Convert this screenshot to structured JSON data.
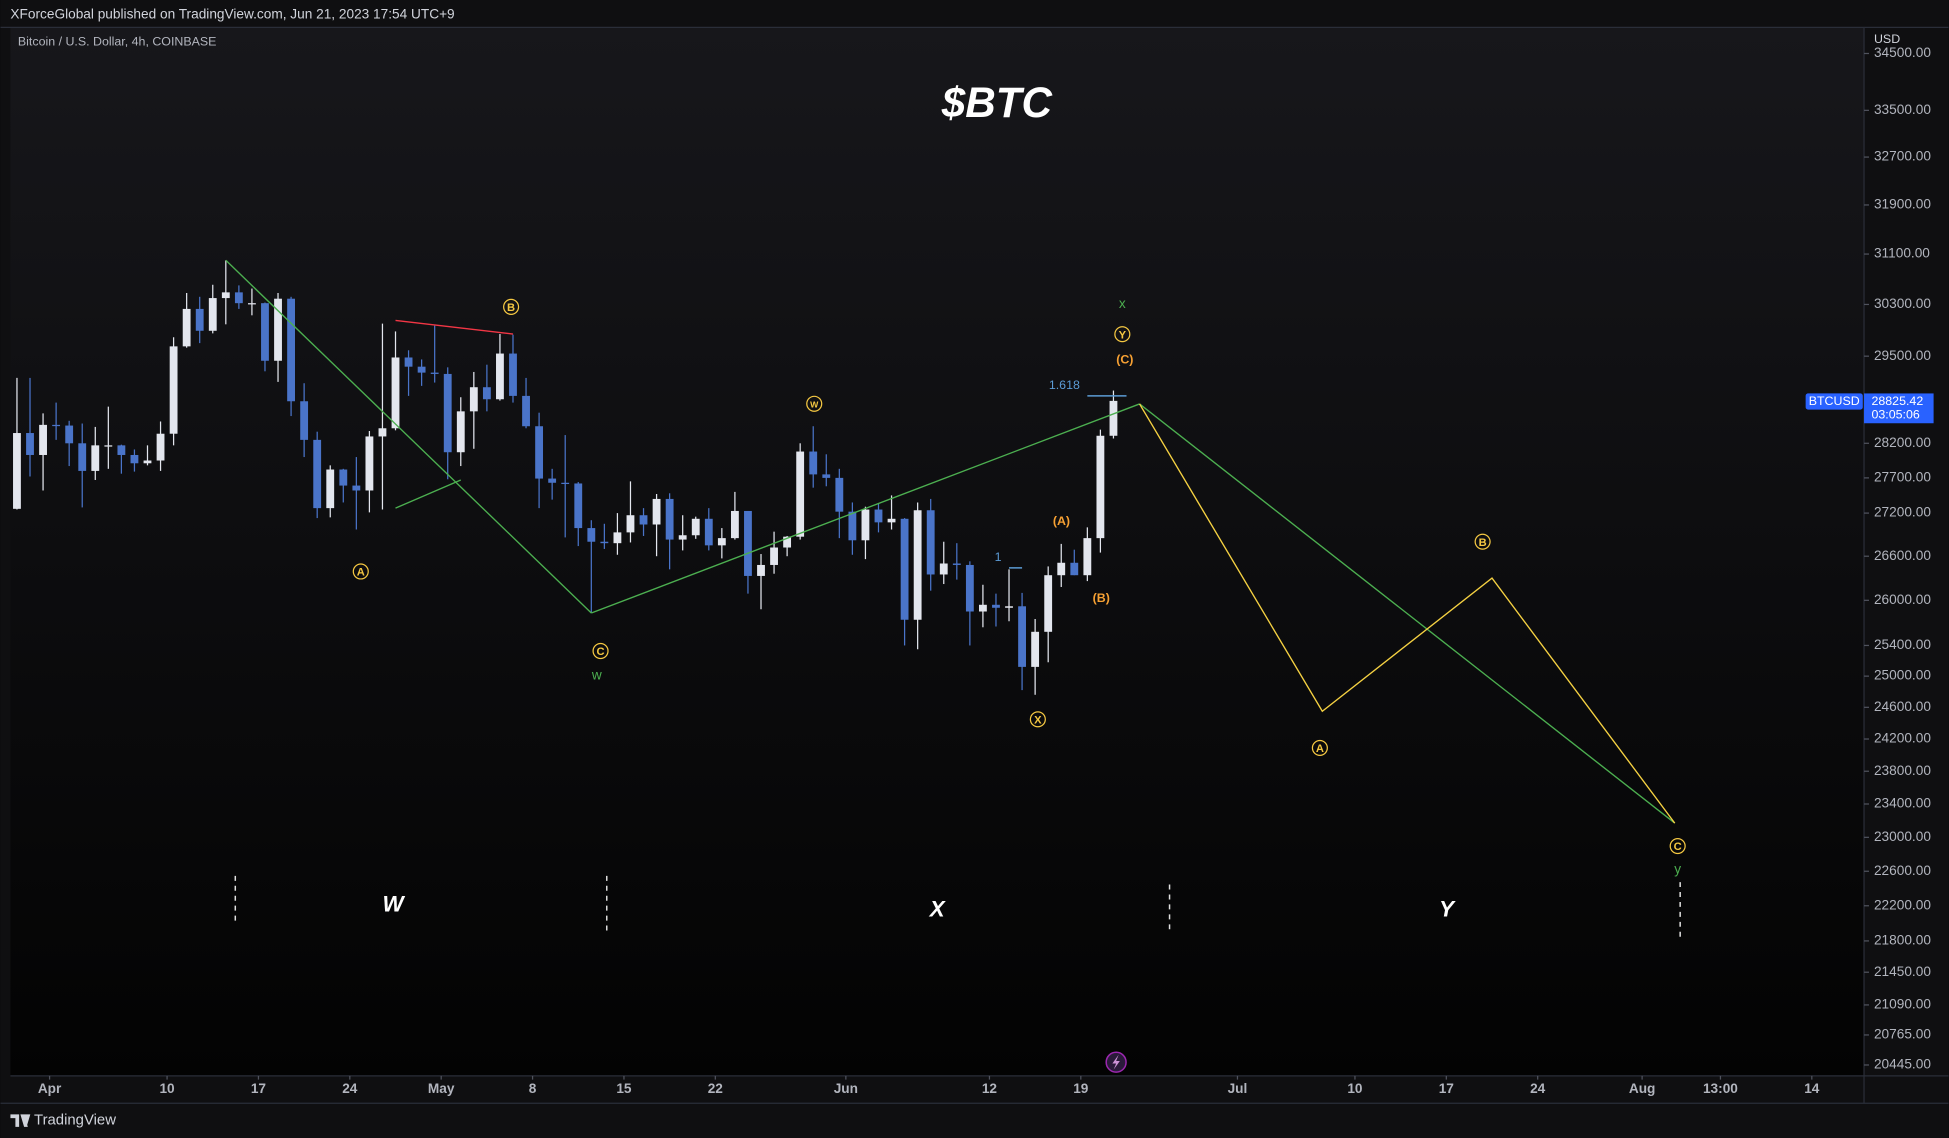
{
  "header": {
    "published": "XForceGlobal published on TradingView.com, Jun 21, 2023 17:54 UTC+9"
  },
  "footer": {
    "brand": "TradingView"
  },
  "chart_data": {
    "type": "candlestick",
    "title": "$BTC",
    "symbol": "Bitcoin / U.S. Dollar, 4h, COINBASE",
    "currency": "USD",
    "ticker": "BTCUSD",
    "last_price": 28825.42,
    "countdown": "03:05:06",
    "log_scale": true,
    "grid": false,
    "up_color": "#e3e6ee",
    "down_color": "#4a74c9",
    "x": [
      "03-29",
      "03-30",
      "03-31",
      "04-01",
      "04-02",
      "04-03",
      "04-04",
      "04-05",
      "04-06",
      "04-07",
      "04-08",
      "04-09",
      "04-10",
      "04-11",
      "04-12",
      "04-13",
      "04-14",
      "04-15",
      "04-16",
      "04-17",
      "04-18",
      "04-19",
      "04-20",
      "04-21",
      "04-22",
      "04-23",
      "04-24",
      "04-25",
      "04-26",
      "04-27",
      "04-28",
      "04-29",
      "04-30",
      "05-01",
      "05-02",
      "05-03",
      "05-04",
      "05-05",
      "05-06",
      "05-07",
      "05-08",
      "05-09",
      "05-10",
      "05-11",
      "05-12",
      "05-13",
      "05-14",
      "05-15",
      "05-16",
      "05-17",
      "05-18",
      "05-19",
      "05-20",
      "05-21",
      "05-22",
      "05-23",
      "05-24",
      "05-25",
      "05-26",
      "05-27",
      "05-28",
      "05-29",
      "05-30",
      "05-31",
      "06-01",
      "06-02",
      "06-03",
      "06-04",
      "06-05",
      "06-06",
      "06-07",
      "06-08",
      "06-09",
      "06-10",
      "06-11",
      "06-12",
      "06-13",
      "06-14",
      "06-15",
      "06-16",
      "06-17",
      "06-18",
      "06-19",
      "06-20",
      "06-21"
    ],
    "open": [
      27260,
      28350,
      28030,
      28470,
      28460,
      28200,
      27800,
      28170,
      28170,
      28030,
      27910,
      27950,
      28340,
      29650,
      30230,
      29890,
      30400,
      30490,
      30320,
      30320,
      29430,
      30390,
      28820,
      28250,
      27270,
      27820,
      27590,
      27520,
      28300,
      28420,
      29480,
      29340,
      29250,
      29230,
      28070,
      28670,
      29030,
      28850,
      29540,
      28900,
      28450,
      27690,
      27630,
      27620,
      26990,
      26800,
      26780,
      26930,
      27170,
      27040,
      27400,
      26830,
      26890,
      27120,
      26750,
      26850,
      27230,
      26330,
      26480,
      26720,
      26870,
      28080,
      27750,
      27700,
      27220,
      26820,
      27250,
      27070,
      27120,
      25740,
      27240,
      26350,
      26500,
      26480,
      25850,
      25940,
      25900,
      25920,
      25120,
      25580,
      26340,
      26510,
      26340,
      26850,
      28310
    ],
    "high": [
      29170,
      29170,
      28640,
      28800,
      28530,
      28490,
      28440,
      28740,
      28180,
      28110,
      28170,
      28520,
      29790,
      30480,
      30420,
      30610,
      31000,
      30600,
      30550,
      30330,
      30480,
      30420,
      29090,
      28370,
      27880,
      27830,
      28000,
      28380,
      30000,
      29880,
      29590,
      29450,
      29970,
      29330,
      28880,
      29260,
      29370,
      29840,
      29830,
      29170,
      28650,
      27830,
      28320,
      27640,
      27100,
      27050,
      27200,
      27650,
      27270,
      27470,
      27480,
      27170,
      27150,
      27270,
      26990,
      27500,
      27230,
      26630,
      26940,
      26880,
      28200,
      28450,
      28040,
      27830,
      27350,
      27290,
      27330,
      27450,
      27130,
      27350,
      27400,
      26800,
      26780,
      26530,
      26210,
      26090,
      26420,
      26100,
      25750,
      26460,
      26770,
      26690,
      27000,
      28400,
      28980
    ],
    "low": [
      27250,
      27720,
      27520,
      28250,
      27870,
      27280,
      27670,
      27830,
      27760,
      27790,
      27880,
      27800,
      28170,
      29630,
      29700,
      29850,
      29990,
      30230,
      30130,
      29270,
      29110,
      28600,
      28000,
      27130,
      27140,
      27350,
      26970,
      27210,
      27250,
      28390,
      28900,
      29050,
      29100,
      27680,
      27870,
      28120,
      28670,
      28830,
      28800,
      28420,
      27270,
      27390,
      26860,
      26740,
      25830,
      26700,
      26620,
      26790,
      26880,
      26600,
      26420,
      26680,
      26840,
      26680,
      26570,
      26830,
      26090,
      25880,
      26360,
      26600,
      26830,
      27560,
      27580,
      26850,
      26620,
      26560,
      26930,
      26970,
      25400,
      25350,
      26130,
      26220,
      26280,
      25400,
      25640,
      25650,
      25720,
      24820,
      24760,
      25180,
      26180,
      26340,
      26260,
      26650,
      28270
    ],
    "close": [
      28350,
      28030,
      28470,
      28460,
      28200,
      27800,
      28170,
      28170,
      28030,
      27910,
      27950,
      28340,
      29650,
      30230,
      29890,
      30400,
      30490,
      30320,
      30320,
      29430,
      30390,
      28820,
      28250,
      27270,
      27820,
      27590,
      27520,
      28300,
      28420,
      29480,
      29340,
      29250,
      29230,
      28070,
      28670,
      29030,
      28850,
      29540,
      28900,
      28450,
      27690,
      27630,
      27620,
      26990,
      26800,
      26780,
      26930,
      27170,
      27040,
      27400,
      26830,
      26890,
      27120,
      26750,
      26850,
      27230,
      26330,
      26480,
      26720,
      26870,
      28080,
      27750,
      27700,
      27220,
      26820,
      27250,
      27070,
      27120,
      25740,
      27240,
      26350,
      26500,
      26480,
      25850,
      25940,
      25900,
      25920,
      25120,
      25580,
      26340,
      26510,
      26340,
      26850,
      28310,
      28825.42
    ],
    "xlim": [
      "03-29",
      "08-18"
    ],
    "xticks": [
      {
        "value": "04-01",
        "label": "Apr"
      },
      {
        "value": "04-10",
        "label": "10"
      },
      {
        "value": "04-17",
        "label": "17"
      },
      {
        "value": "04-24",
        "label": "24"
      },
      {
        "value": "05-01",
        "label": "May"
      },
      {
        "value": "05-08",
        "label": "8"
      },
      {
        "value": "05-15",
        "label": "15"
      },
      {
        "value": "05-22",
        "label": "22"
      },
      {
        "value": "06-01",
        "label": "Jun"
      },
      {
        "value": "06-12",
        "label": "12"
      },
      {
        "value": "06-19",
        "label": "19"
      },
      {
        "value": "07-01",
        "label": "Jul"
      },
      {
        "value": "07-10",
        "label": "10"
      },
      {
        "value": "07-17",
        "label": "17"
      },
      {
        "value": "07-24",
        "label": "24"
      },
      {
        "value": "08-01",
        "label": "Aug"
      },
      {
        "value": "08-07",
        "label": "13:00"
      },
      {
        "value": "08-14",
        "label": "14"
      }
    ],
    "ylim": [
      20330,
      34970
    ],
    "yticks": [
      {
        "value": 34500,
        "label": "34500.00"
      },
      {
        "value": 33500,
        "label": "33500.00"
      },
      {
        "value": 32700,
        "label": "32700.00"
      },
      {
        "value": 31900,
        "label": "31900.00"
      },
      {
        "value": 31100,
        "label": "31100.00"
      },
      {
        "value": 30300,
        "label": "30300.00"
      },
      {
        "value": 29500,
        "label": "29500.00"
      },
      {
        "value": 28200,
        "label": "28200.00"
      },
      {
        "value": 27700,
        "label": "27700.00"
      },
      {
        "value": 27200,
        "label": "27200.00"
      },
      {
        "value": 26600,
        "label": "26600.00"
      },
      {
        "value": 26000,
        "label": "26000.00"
      },
      {
        "value": 25400,
        "label": "25400.00"
      },
      {
        "value": 25000,
        "label": "25000.00"
      },
      {
        "value": 24600,
        "label": "24600.00"
      },
      {
        "value": 24200,
        "label": "24200.00"
      },
      {
        "value": 23800,
        "label": "23800.00"
      },
      {
        "value": 23400,
        "label": "23400.00"
      },
      {
        "value": 23000,
        "label": "23000.00"
      },
      {
        "value": 22600,
        "label": "22600.00"
      },
      {
        "value": 22200,
        "label": "22200.00"
      },
      {
        "value": 21800,
        "label": "21800.00"
      },
      {
        "value": 21450,
        "label": "21450.00"
      },
      {
        "value": 21090,
        "label": "21090.00"
      },
      {
        "value": 20765,
        "label": "20765.00"
      },
      {
        "value": 20445,
        "label": "20445.00"
      }
    ],
    "drawings": [
      {
        "color": "#4caf50",
        "x": [
          "04-14",
          "05-12"
        ],
        "y": [
          31000,
          25830
        ]
      },
      {
        "color": "#4caf50",
        "x": [
          "04-27",
          "05-02"
        ],
        "y": [
          27270,
          27670
        ]
      },
      {
        "color": "#4caf50",
        "x": [
          "05-12",
          "06-23"
        ],
        "y": [
          25830,
          28780
        ]
      },
      {
        "color": "#4caf50",
        "x": [
          "06-23",
          "08-03"
        ],
        "y": [
          28780,
          23170
        ]
      },
      {
        "color": "#f23645",
        "x": [
          "04-27",
          "05-06"
        ],
        "y": [
          30050,
          29840
        ]
      },
      {
        "color": "#f5d142",
        "x": [
          "06-23",
          "07-07",
          "07-20",
          "08-03"
        ],
        "y": [
          28780,
          24550,
          26300,
          23170
        ]
      }
    ],
    "fib": [
      {
        "ratio": 1.618,
        "price": 28900,
        "x": [
          "06-19",
          "06-22"
        ]
      },
      {
        "ratio": 1,
        "price": 26440,
        "x": [
          "06-13",
          "06-14"
        ]
      }
    ],
    "annotations": [
      "A",
      "B",
      "C",
      "W",
      "X",
      "Y",
      "A",
      "B",
      "C",
      "(A)",
      "(B)",
      "(C)",
      "w",
      "x",
      "y",
      "W",
      "X",
      "Y"
    ]
  }
}
